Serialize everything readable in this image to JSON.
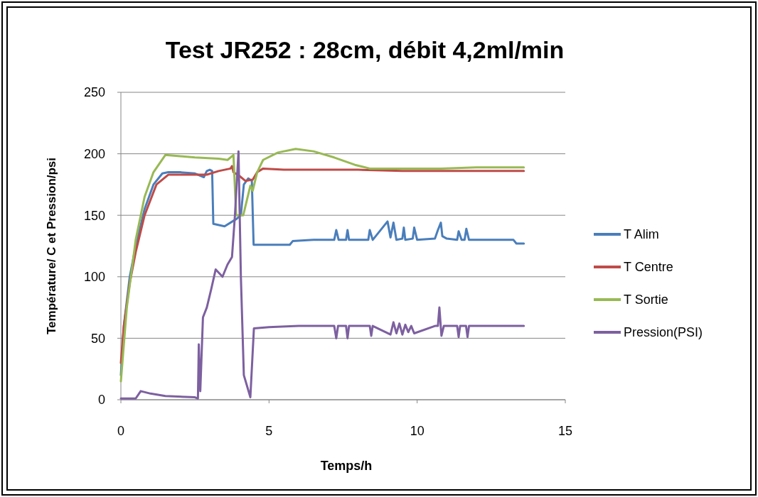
{
  "chart_data": {
    "type": "line",
    "title": "Test JR252 : 28cm, débit 4,2ml/min",
    "xlabel": "Temps/h",
    "ylabel": "Température/ C et Pression/psi",
    "xlim": [
      0,
      15
    ],
    "xticks": [
      0,
      5,
      10,
      15
    ],
    "ylim": [
      0,
      250
    ],
    "yticks": [
      0,
      50,
      100,
      150,
      200,
      250
    ],
    "grid": "y",
    "legend": "right",
    "marker": "none",
    "line_style": "solid",
    "series": [
      {
        "name": "T Alim",
        "color": "#4a7ebb",
        "x": [
          0,
          0.1,
          0.3,
          0.5,
          0.8,
          1.1,
          1.4,
          1.6,
          2.0,
          2.5,
          2.8,
          2.9,
          3.0,
          3.08,
          3.12,
          3.5,
          3.9,
          4.05,
          4.15,
          4.3,
          4.42,
          4.48,
          5.0,
          5.7,
          5.8,
          6.5,
          7.2,
          7.27,
          7.35,
          7.6,
          7.65,
          7.7,
          8.35,
          8.4,
          8.5,
          9.0,
          9.1,
          9.2,
          9.3,
          9.5,
          9.55,
          9.6,
          9.85,
          9.9,
          10.0,
          10.6,
          10.7,
          10.8,
          10.85,
          11.0,
          11.35,
          11.4,
          11.5,
          11.6,
          11.66,
          11.75,
          12.5,
          13.25,
          13.35,
          13.6
        ],
        "values": [
          20,
          60,
          100,
          125,
          155,
          175,
          184,
          185,
          185,
          184,
          181,
          186,
          187,
          186,
          143,
          141,
          147,
          150,
          175,
          180,
          178,
          126,
          126,
          126,
          129,
          130,
          130,
          138,
          130,
          130,
          138,
          130,
          130,
          138,
          130,
          145,
          132,
          144,
          130,
          131,
          140,
          130,
          131,
          140,
          130,
          131,
          138,
          144,
          133,
          131,
          130,
          137,
          130,
          130,
          139,
          130,
          130,
          130,
          127,
          127
        ]
      },
      {
        "name": "T Centre",
        "color": "#be4b48",
        "x": [
          0,
          0.1,
          0.3,
          0.5,
          0.8,
          1.2,
          1.6,
          2.0,
          2.9,
          3.3,
          3.7,
          3.75,
          3.8,
          4.0,
          4.2,
          4.45,
          4.6,
          4.8,
          5.5,
          6.5,
          8.0,
          9.5,
          11.0,
          12.5,
          13.6
        ],
        "values": [
          30,
          60,
          95,
          120,
          150,
          175,
          183,
          183,
          183,
          186,
          188,
          190,
          185,
          182,
          178,
          179,
          185,
          188,
          187,
          187,
          187,
          186,
          186,
          186,
          186
        ]
      },
      {
        "name": "T Sortie",
        "color": "#98b954",
        "x": [
          0,
          0.1,
          0.2,
          0.5,
          0.8,
          1.1,
          1.5,
          2.0,
          2.5,
          3.3,
          3.6,
          3.8,
          3.89,
          4.13,
          4.37,
          4.45,
          4.6,
          4.8,
          5.3,
          5.9,
          6.5,
          7.2,
          7.9,
          8.4,
          9.4,
          10.8,
          12.0,
          13.6
        ],
        "values": [
          15,
          45,
          75,
          130,
          165,
          185,
          199,
          198,
          197,
          196,
          195,
          199,
          150,
          150,
          174,
          170,
          185,
          195,
          201,
          204,
          202,
          197,
          191,
          188,
          188,
          188,
          189,
          189
        ]
      },
      {
        "name": "Pression(PSI)",
        "color": "#7d60a0",
        "x": [
          0,
          0.5,
          0.67,
          1.0,
          1.5,
          2.5,
          2.6,
          2.63,
          2.68,
          2.77,
          2.9,
          3.05,
          3.2,
          3.43,
          3.6,
          3.75,
          3.85,
          3.97,
          4.05,
          4.15,
          4.37,
          4.49,
          5.0,
          6.0,
          7.2,
          7.27,
          7.33,
          7.6,
          7.65,
          7.7,
          8.4,
          8.45,
          8.5,
          9.1,
          9.2,
          9.3,
          9.4,
          9.5,
          9.6,
          9.7,
          9.8,
          9.9,
          10.6,
          10.7,
          10.75,
          10.82,
          10.9,
          11.35,
          11.4,
          11.45,
          11.65,
          11.7,
          11.75,
          12.5,
          13.6
        ],
        "values": [
          1,
          1,
          7,
          5,
          3,
          2,
          1,
          45,
          7,
          67,
          75,
          90,
          106,
          100,
          110,
          116,
          150,
          202,
          100,
          20,
          2,
          58,
          59,
          60,
          60,
          50,
          60,
          60,
          50,
          60,
          60,
          52,
          60,
          53,
          63,
          54,
          62,
          53,
          61,
          55,
          60,
          54,
          60,
          60,
          75,
          52,
          60,
          60,
          51,
          60,
          60,
          51,
          60,
          60,
          60
        ]
      }
    ]
  }
}
